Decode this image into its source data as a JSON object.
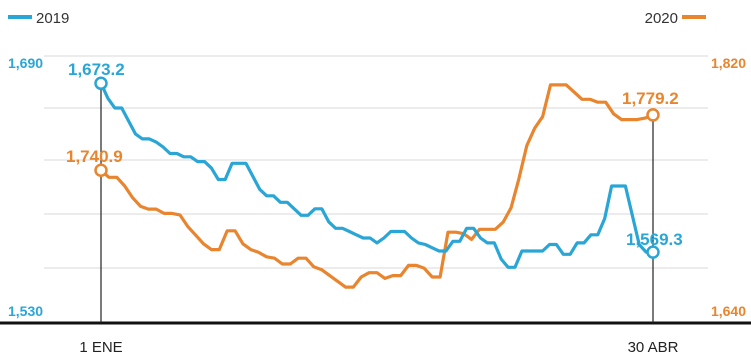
{
  "chart_data": {
    "type": "line",
    "grid": true,
    "legend_placement": "top",
    "x": {
      "start_label": "1 ENE",
      "end_label": "30 ABR"
    },
    "y_left": {
      "min": 1530,
      "max": 1690,
      "min_label": "1,530",
      "max_label": "1,690"
    },
    "y_right": {
      "min": 1640,
      "max": 1820,
      "min_label": "1,640",
      "max_label": "1,820"
    },
    "series": [
      {
        "name": "2019",
        "color": "#2aa6d6",
        "axis": "left",
        "start_label": "1,673.2",
        "end_label": "1,569.3",
        "values": [
          1673.2,
          1664,
          1658,
          1658,
          1650,
          1642,
          1639,
          1639,
          1637,
          1634,
          1630,
          1630,
          1628,
          1628,
          1625,
          1625,
          1621,
          1614,
          1614,
          1624,
          1624,
          1624,
          1616,
          1608,
          1604,
          1604,
          1600,
          1600,
          1596,
          1592,
          1592,
          1596,
          1596,
          1588,
          1584,
          1584,
          1582,
          1580,
          1578,
          1578,
          1575,
          1578,
          1582,
          1582,
          1582,
          1578,
          1575,
          1574,
          1572,
          1570,
          1570,
          1576,
          1576,
          1584,
          1584,
          1578,
          1575,
          1575,
          1565,
          1560,
          1560,
          1570,
          1570,
          1570,
          1570,
          1574,
          1574,
          1568,
          1568,
          1575,
          1575,
          1580,
          1580,
          1590,
          1610,
          1610,
          1610,
          1592,
          1574,
          1569.3,
          1569.3
        ]
      },
      {
        "name": "2020",
        "color": "#e8852e",
        "axis": "right",
        "start_label": "1,740.9",
        "end_label": "1,779.2",
        "values": [
          1740.9,
          1736,
          1736,
          1730,
          1722,
          1716,
          1714,
          1714,
          1711,
          1711,
          1710,
          1702,
          1696,
          1690,
          1686,
          1686,
          1699,
          1699,
          1690,
          1686,
          1684,
          1681,
          1680,
          1676,
          1676,
          1680,
          1680,
          1674,
          1672,
          1668,
          1664,
          1660,
          1660,
          1667,
          1670,
          1670,
          1666,
          1668,
          1668,
          1675,
          1675,
          1673,
          1667,
          1667,
          1698,
          1698,
          1697,
          1693,
          1700,
          1700,
          1700,
          1705,
          1715,
          1735,
          1758,
          1770,
          1778,
          1800,
          1800,
          1800,
          1795,
          1790,
          1790,
          1788,
          1788,
          1780,
          1776,
          1776,
          1776,
          1777,
          1779.2
        ]
      }
    ]
  }
}
